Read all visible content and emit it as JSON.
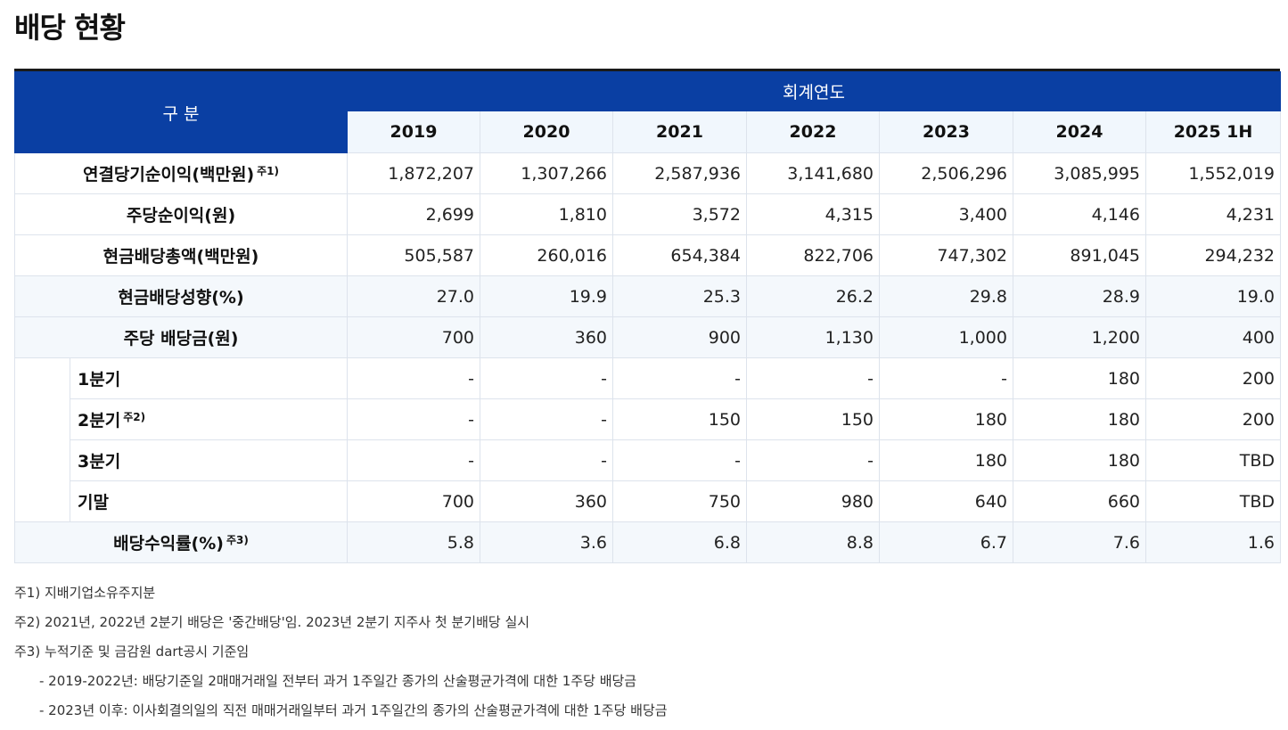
{
  "title": "배당 현황",
  "header": {
    "gubun": "구 분",
    "fiscal_year": "회계연도",
    "years": [
      "2019",
      "2020",
      "2021",
      "2022",
      "2023",
      "2024",
      "2025 1H"
    ]
  },
  "rows": [
    {
      "label": "연결당기순이익(백만원)",
      "note": "주1)",
      "values": [
        "1,872,207",
        "1,307,266",
        "2,587,936",
        "3,141,680",
        "2,506,296",
        "3,085,995",
        "1,552,019"
      ]
    },
    {
      "label": "주당순이익(원)",
      "values": [
        "2,699",
        "1,810",
        "3,572",
        "4,315",
        "3,400",
        "4,146",
        "4,231"
      ]
    },
    {
      "label": "현금배당총액(백만원)",
      "values": [
        "505,587",
        "260,016",
        "654,384",
        "822,706",
        "747,302",
        "891,045",
        "294,232"
      ]
    },
    {
      "label": "현금배당성향(%)",
      "values": [
        "27.0",
        "19.9",
        "25.3",
        "26.2",
        "29.8",
        "28.9",
        "19.0"
      ]
    },
    {
      "label": "주당 배당금(원)",
      "values": [
        "700",
        "360",
        "900",
        "1,130",
        "1,000",
        "1,200",
        "400"
      ]
    }
  ],
  "quarter_rows": [
    {
      "label": "1분기",
      "values": [
        "-",
        "-",
        "-",
        "-",
        "-",
        "180",
        "200"
      ]
    },
    {
      "label": "2분기",
      "note": "주2)",
      "values": [
        "-",
        "-",
        "150",
        "150",
        "180",
        "180",
        "200"
      ]
    },
    {
      "label": "3분기",
      "values": [
        "-",
        "-",
        "-",
        "-",
        "180",
        "180",
        "TBD"
      ]
    },
    {
      "label": "기말",
      "values": [
        "700",
        "360",
        "750",
        "980",
        "640",
        "660",
        "TBD"
      ]
    }
  ],
  "yield_row": {
    "label": "배당수익률(%)",
    "note": "주3)",
    "values": [
      "5.8",
      "3.6",
      "6.8",
      "8.8",
      "6.7",
      "7.6",
      "1.6"
    ]
  },
  "notes": [
    "주1) 지배기업소유주지분",
    "주2) 2021년, 2022년 2분기 배당은 '중간배당'임. 2023년 2분기 지주사 첫 분기배당 실시",
    "주3) 누적기준 및 금감원 dart공시 기준임",
    "- 2019-2022년: 배당기준일 2매매거래일 전부터 과거 1주일간 종가의 산술평균가격에 대한 1주당 배당금",
    "- 2023년 이후: 이사회결의일의 직전 매매거래일부터 과거 1주일간의 종가의 산술평균가격에 대한 1주당 배당금"
  ]
}
